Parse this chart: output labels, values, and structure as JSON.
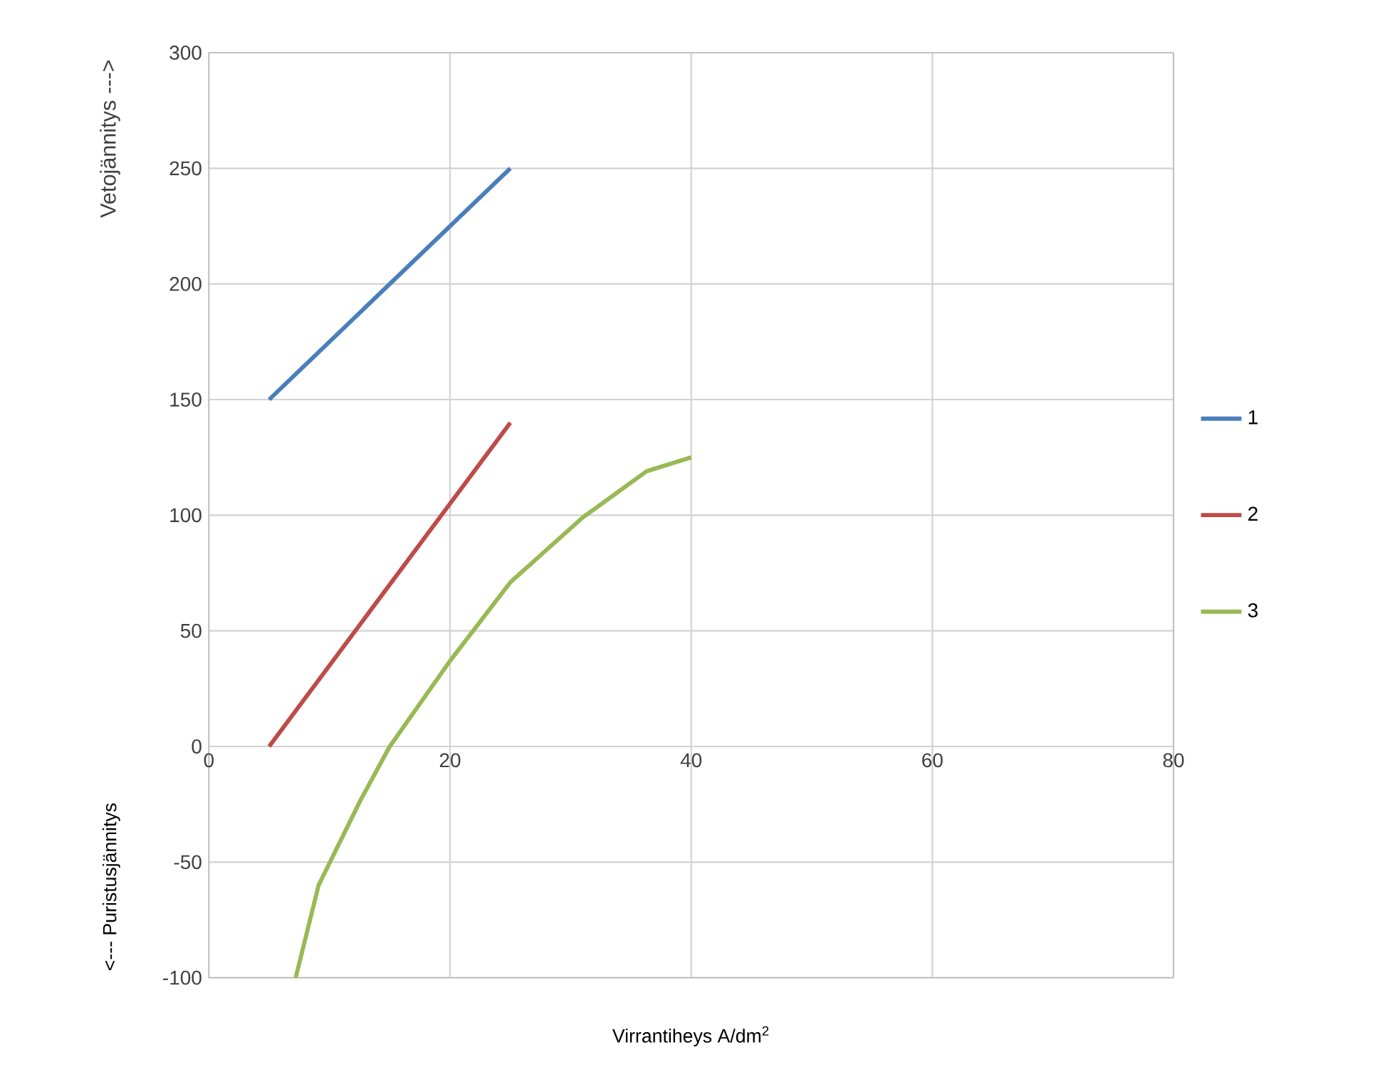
{
  "chart_data": {
    "type": "line",
    "xlabel": "Virrantiheys A/dm$^{2}$",
    "ylabel": "<--- Puristusjännitys",
    "annotations": [
      "Vetojännitys --->"
    ],
    "xlim": [
      0,
      80
    ],
    "ylim": [
      -100,
      300
    ],
    "xticks": [
      0,
      20,
      40,
      60,
      80
    ],
    "yticks": [
      -100,
      -50,
      0,
      50,
      100,
      150,
      200,
      250,
      300
    ],
    "grid": true,
    "legend": "right",
    "marker": "none",
    "line_style": "solid",
    "series": [
      {
        "name": "1",
        "color": "#4a7ebb",
        "x": [
          5,
          25
        ],
        "values": [
          150,
          250
        ]
      },
      {
        "name": "2",
        "color": "#be4b48",
        "x": [
          5,
          25
        ],
        "values": [
          0,
          140
        ]
      },
      {
        "name": "3",
        "color": "#98b954",
        "x": [
          7.2,
          9.1,
          12.6,
          15,
          20,
          25,
          31,
          36.3,
          40
        ],
        "values": [
          -100,
          -60,
          -23,
          0,
          37,
          71,
          99,
          119,
          125
        ]
      }
    ]
  }
}
